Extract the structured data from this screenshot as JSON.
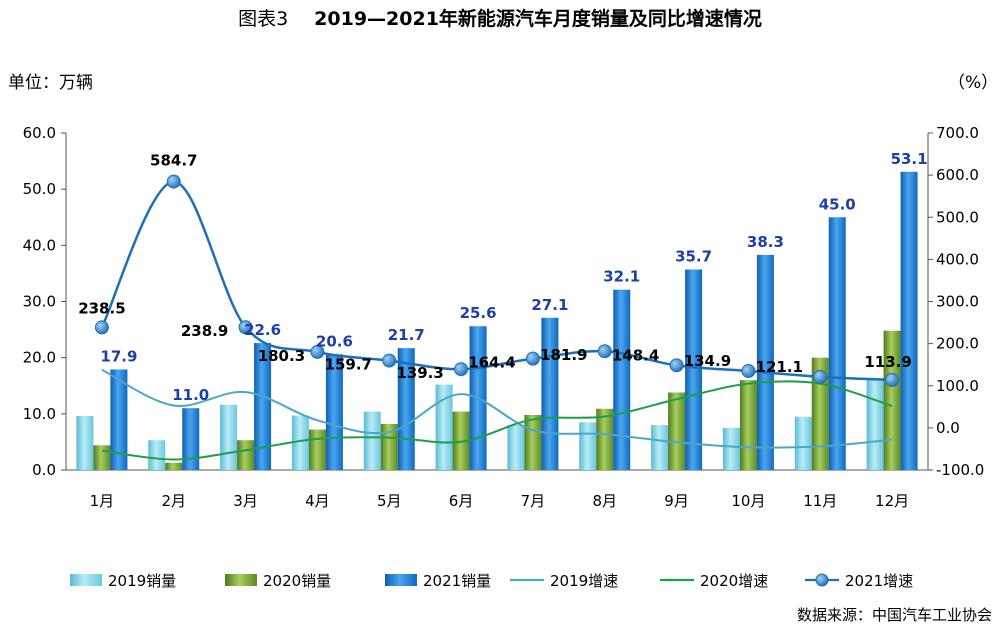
{
  "title": {
    "prefix": "图表3",
    "main": "2019—2021年新能源汽车月度销量及同比增速情况"
  },
  "unit_left": "单位：万辆",
  "unit_right": "（%）",
  "source": "数据来源：中国汽车工业协会",
  "colors": {
    "sales_2019": "#7dd3e8",
    "sales_2020": "#7ea63a",
    "sales_2021": "#1f86d6",
    "growth_2019": "#4ba7c9",
    "growth_2020": "#1aa04a",
    "growth_2021": "#1f6fb8",
    "label_2021": "#1f3fa8"
  },
  "chart_data": {
    "type": "bar",
    "categories": [
      "1月",
      "2月",
      "3月",
      "4月",
      "5月",
      "6月",
      "7月",
      "8月",
      "9月",
      "10月",
      "11月",
      "12月"
    ],
    "y_left": {
      "min": 0,
      "max": 60,
      "step": 10,
      "ticks": [
        "0.0",
        "10.0",
        "20.0",
        "30.0",
        "40.0",
        "50.0",
        "60.0"
      ]
    },
    "y_right": {
      "min": -100,
      "max": 700,
      "step": 100,
      "ticks": [
        "-100.0",
        "0.0",
        "100.0",
        "200.0",
        "300.0",
        "400.0",
        "500.0",
        "600.0",
        "700.0"
      ]
    },
    "series": [
      {
        "name": "2019销量",
        "type": "bar",
        "axis": "left",
        "values": [
          9.6,
          5.3,
          11.6,
          9.7,
          10.4,
          15.2,
          8.0,
          8.5,
          8.0,
          7.5,
          9.5,
          16.3
        ]
      },
      {
        "name": "2020销量",
        "type": "bar",
        "axis": "left",
        "values": [
          4.4,
          1.3,
          5.3,
          7.2,
          8.2,
          10.4,
          9.8,
          10.9,
          13.8,
          16.0,
          20.0,
          24.8
        ]
      },
      {
        "name": "2021销量",
        "type": "bar",
        "axis": "left",
        "values": [
          17.9,
          11.0,
          22.6,
          20.6,
          21.7,
          25.6,
          27.1,
          32.1,
          35.7,
          38.3,
          45.0,
          53.1
        ],
        "labels": [
          "17.9",
          "11.0",
          "22.6",
          "20.6",
          "21.7",
          "25.6",
          "27.1",
          "32.1",
          "35.7",
          "38.3",
          "45.0",
          "53.1"
        ]
      },
      {
        "name": "2019增速",
        "type": "line",
        "axis": "right",
        "values": [
          138,
          53,
          85,
          18,
          -10,
          80,
          -5,
          -15,
          -34,
          -46,
          -44,
          -28
        ]
      },
      {
        "name": "2020增速",
        "type": "line",
        "axis": "right",
        "values": [
          -54,
          -75,
          -53,
          -26,
          -23,
          -33,
          20,
          27,
          68,
          105,
          105,
          52
        ]
      },
      {
        "name": "2021增速",
        "type": "line",
        "axis": "right",
        "values": [
          238.5,
          584.7,
          238.9,
          180.3,
          159.7,
          139.3,
          164.4,
          181.9,
          148.4,
          134.9,
          121.1,
          113.9
        ],
        "labels": [
          "238.5",
          "584.7",
          "238.9",
          "180.3",
          "159.7",
          "139.3",
          "164.4",
          "181.9",
          "148.4",
          "134.9",
          "121.1",
          "113.9"
        ]
      }
    ],
    "legend_position": "bottom"
  }
}
